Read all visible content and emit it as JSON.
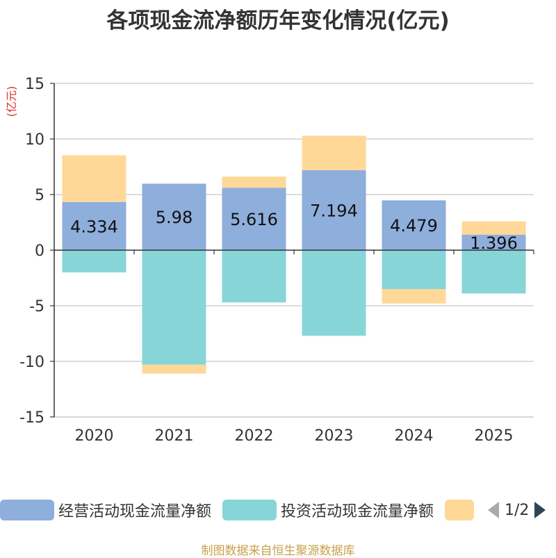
{
  "chart_data": {
    "type": "bar",
    "title": "各项现金流净额历年变化情况(亿元)",
    "ylabel": "(亿元)",
    "xlabel": "",
    "ylim": [
      -15,
      15
    ],
    "yticks": [
      15,
      10,
      5,
      0,
      -5,
      -10,
      -15
    ],
    "categories": [
      "2020",
      "2021",
      "2022",
      "2023",
      "2024",
      "2025"
    ],
    "stacked": true,
    "series": [
      {
        "name": "经营活动现金流量净额",
        "color": "#8eaedc",
        "values": [
          4.334,
          5.98,
          5.616,
          7.194,
          4.479,
          1.396
        ],
        "show_labels": true
      },
      {
        "name": "投资活动现金流量净额",
        "color": "#88d5d8",
        "values": [
          -2.0,
          -10.3,
          -4.7,
          -7.7,
          -3.5,
          -3.9
        ],
        "show_labels": false
      },
      {
        "name": "",
        "color": "#ffd898",
        "values": [
          4.2,
          -0.8,
          1.0,
          3.1,
          -1.3,
          1.2
        ],
        "show_labels": false
      }
    ],
    "legend": {
      "position": "bottom",
      "page": "1/2"
    }
  },
  "footer": {
    "source": "制图数据来自恒生聚源数据库"
  }
}
